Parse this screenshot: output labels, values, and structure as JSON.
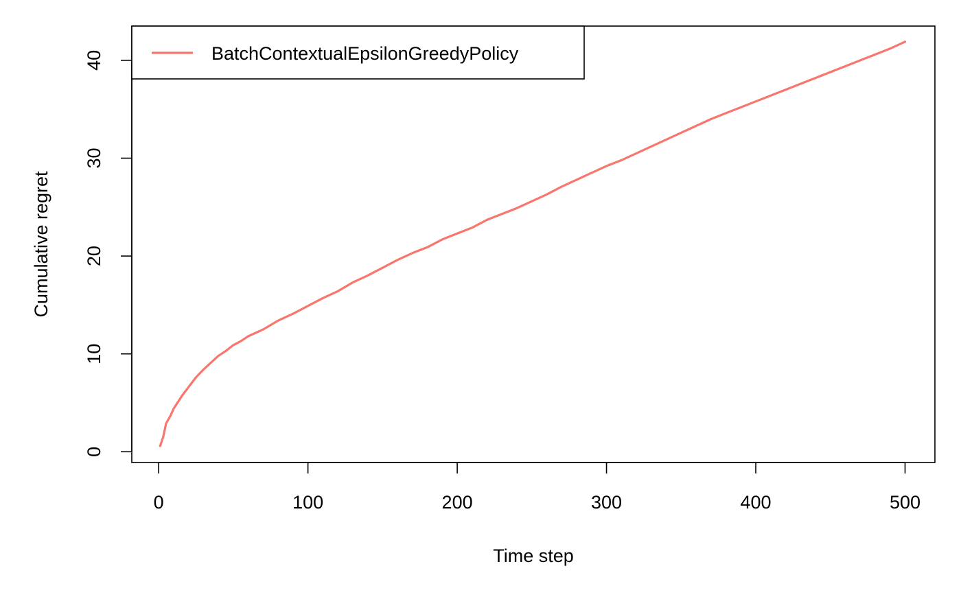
{
  "chart_data": {
    "type": "line",
    "title": "",
    "xlabel": "Time step",
    "ylabel": "Cumulative regret",
    "xlim": [
      -18,
      520
    ],
    "ylim": [
      -1.1,
      43.5
    ],
    "xticks": [
      0,
      100,
      200,
      300,
      400,
      500
    ],
    "yticks": [
      0,
      10,
      20,
      30,
      40
    ],
    "grid": false,
    "legend_position": "top-left",
    "series": [
      {
        "name": "BatchContextualEpsilonGreedyPolicy",
        "color": "#F8766D",
        "x": [
          1,
          3,
          5,
          8,
          10,
          13,
          16,
          20,
          25,
          30,
          35,
          40,
          45,
          50,
          55,
          60,
          70,
          80,
          90,
          100,
          110,
          120,
          130,
          140,
          150,
          160,
          170,
          180,
          190,
          200,
          210,
          220,
          230,
          240,
          250,
          260,
          270,
          280,
          290,
          300,
          310,
          320,
          330,
          340,
          350,
          360,
          370,
          380,
          390,
          400,
          410,
          420,
          430,
          440,
          450,
          460,
          470,
          480,
          490,
          500
        ],
        "y": [
          0.6,
          1.5,
          2.9,
          3.7,
          4.4,
          5.1,
          5.8,
          6.6,
          7.6,
          8.4,
          9.1,
          9.8,
          10.3,
          10.9,
          11.3,
          11.8,
          12.5,
          13.4,
          14.1,
          14.9,
          15.7,
          16.4,
          17.3,
          18.0,
          18.8,
          19.6,
          20.3,
          20.9,
          21.7,
          22.3,
          22.9,
          23.7,
          24.3,
          24.9,
          25.6,
          26.3,
          27.1,
          27.8,
          28.5,
          29.2,
          29.8,
          30.5,
          31.2,
          31.9,
          32.6,
          33.3,
          34.0,
          34.6,
          35.2,
          35.8,
          36.4,
          37.0,
          37.6,
          38.2,
          38.8,
          39.4,
          40.0,
          40.6,
          41.2,
          41.9
        ]
      }
    ]
  }
}
